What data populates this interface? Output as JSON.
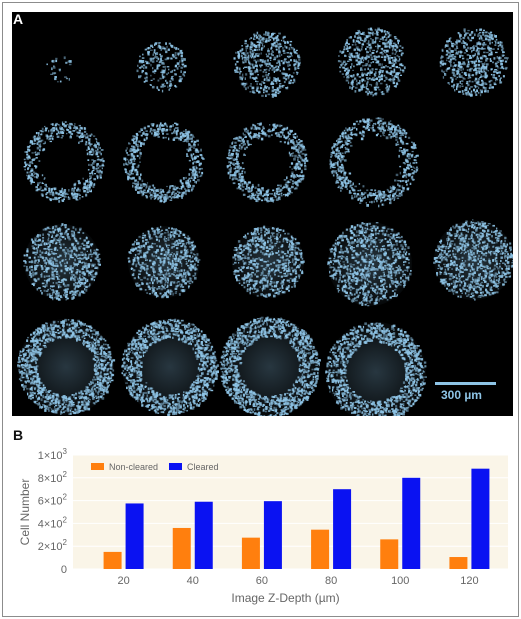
{
  "panel_a": {
    "label": "A",
    "scale_bar_label": "300 µm",
    "dot_color": "#8ec4e6",
    "background": "#000000",
    "spheroid_rows": [
      5,
      4,
      5,
      4
    ]
  },
  "panel_b": {
    "label": "B"
  },
  "chart_data": {
    "type": "bar",
    "xlabel": "Image Z-Depth (µm)",
    "ylabel": "Cell Number",
    "categories": [
      "20",
      "40",
      "60",
      "80",
      "100",
      "120"
    ],
    "series": [
      {
        "name": "Non-cleared",
        "color": "#ff7f0e",
        "values": [
          150,
          360,
          275,
          345,
          260,
          105
        ]
      },
      {
        "name": "Cleared",
        "color": "#0a12f2",
        "values": [
          575,
          590,
          595,
          700,
          800,
          880
        ]
      }
    ],
    "ylim": [
      0,
      1000
    ],
    "yticks": [
      {
        "value": 0,
        "base": "0",
        "exp": ""
      },
      {
        "value": 200,
        "base": "2×10",
        "exp": "2"
      },
      {
        "value": 400,
        "base": "4×10",
        "exp": "2"
      },
      {
        "value": 600,
        "base": "6×10",
        "exp": "2"
      },
      {
        "value": 800,
        "base": "8×10",
        "exp": "2"
      },
      {
        "value": 1000,
        "base": "1×10",
        "exp": "3"
      }
    ],
    "legend_position": "top-left",
    "plot_background": "#faf5e8",
    "grid": true
  }
}
